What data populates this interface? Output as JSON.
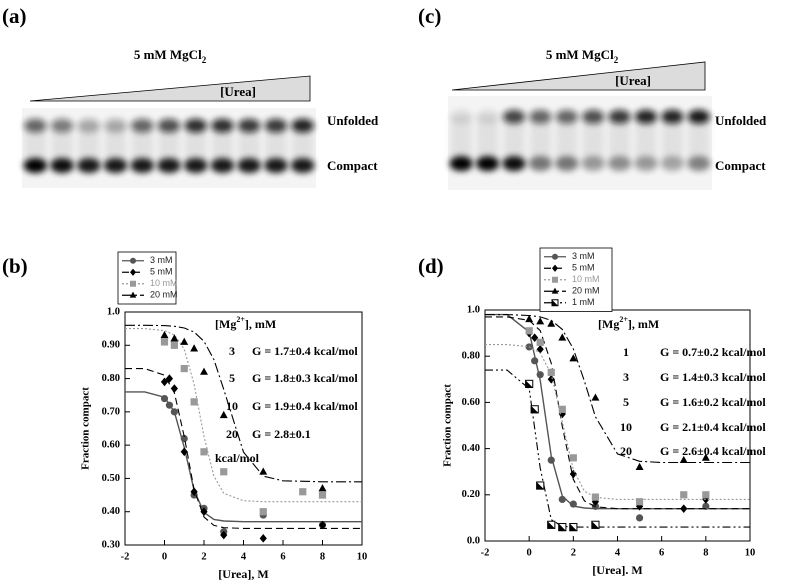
{
  "panels": [
    {
      "label": "(a)",
      "title": {
        "text": "5 mM MgCl",
        "sub": "2"
      },
      "wedge_label": "[Urea]",
      "bands": [
        "Unfolded",
        "Compact"
      ]
    },
    {
      "label": "(c)",
      "title": {
        "text": "5 mM MgCl",
        "sub": "2"
      },
      "wedge_label": "[Urea]",
      "bands": [
        "Unfolded",
        "Compact"
      ]
    }
  ],
  "chart_data": [
    {
      "type": "line",
      "label": "(b)",
      "xlabel": "[Urea], M",
      "ylabel": "Fraction compact",
      "xlim": [
        -2,
        10
      ],
      "ylim": [
        0.3,
        1.0
      ],
      "xticks": [
        -2,
        0,
        2,
        4,
        6,
        8,
        10
      ],
      "yticks": [
        {
          "value": 0.3,
          "label": "0.30"
        },
        {
          "value": 0.4,
          "label": "0.40"
        },
        {
          "value": 0.5,
          "label": "0.50"
        },
        {
          "value": 0.6,
          "label": "0.60"
        },
        {
          "value": 0.7,
          "label": "0.70"
        },
        {
          "value": 0.8,
          "label": "0.80"
        },
        {
          "value": 0.9,
          "label": "0.90"
        },
        {
          "value": 1.0,
          "label": "1.0"
        }
      ],
      "fit_x": [
        -2,
        -1,
        0,
        0.5,
        1,
        1.5,
        2,
        2.5,
        3,
        4,
        5,
        6,
        8,
        10
      ],
      "series": [
        {
          "name": "3 mM",
          "color": "#555555",
          "marker": "circle",
          "dash": "solid",
          "x": [
            0,
            0.25,
            0.5,
            1,
            1.5,
            2,
            3,
            5,
            8
          ],
          "values": [
            0.74,
            0.72,
            0.7,
            0.62,
            0.45,
            0.41,
            0.34,
            0.39,
            0.36
          ],
          "fit": [
            0.76,
            0.76,
            0.744,
            0.7,
            0.593,
            0.464,
            0.398,
            0.377,
            0.372,
            0.37,
            0.37,
            0.37,
            0.37,
            0.37
          ]
        },
        {
          "name": "5 mM",
          "color": "#000000",
          "marker": "diamond",
          "dash": "dashed",
          "x": [
            0,
            0.25,
            0.5,
            1,
            1.5,
            2,
            3,
            5,
            8
          ],
          "values": [
            0.79,
            0.8,
            0.77,
            0.58,
            0.46,
            0.4,
            0.33,
            0.32,
            0.36
          ],
          "fit": [
            0.83,
            0.83,
            0.81,
            0.757,
            0.625,
            0.466,
            0.384,
            0.359,
            0.352,
            0.35,
            0.35,
            0.35,
            0.35,
            0.35
          ]
        },
        {
          "name": "10 mM",
          "color": "#999999",
          "marker": "square",
          "dash": "dotted",
          "x": [
            0,
            0.5,
            1,
            1.5,
            2,
            3,
            5,
            7,
            8
          ],
          "values": [
            0.91,
            0.9,
            0.83,
            0.73,
            0.58,
            0.52,
            0.4,
            0.46,
            0.45
          ],
          "fit": [
            0.95,
            0.95,
            0.944,
            0.931,
            0.888,
            0.783,
            0.626,
            0.507,
            0.455,
            0.433,
            0.43,
            0.43,
            0.43,
            0.43
          ]
        },
        {
          "name": "20 mM",
          "color": "#000000",
          "marker": "triangle",
          "dash": "dashdot",
          "x": [
            0,
            0.5,
            1,
            1.5,
            2,
            3,
            5,
            8
          ],
          "values": [
            0.93,
            0.92,
            0.91,
            0.89,
            0.82,
            0.69,
            0.52,
            0.47
          ],
          "fit": [
            0.96,
            0.96,
            0.959,
            0.957,
            0.952,
            0.94,
            0.912,
            0.857,
            0.767,
            0.579,
            0.507,
            0.493,
            0.49,
            0.49
          ]
        }
      ],
      "annotation": {
        "header": {
          "text": "[Mg",
          "sup": "2+",
          "rest": "], mM"
        },
        "rows": [
          {
            "mg": "3",
            "g": [
              "G = 1.7±0.4 kcal/mol"
            ]
          },
          {
            "mg": "5",
            "g": [
              "G = 1.8±0.3 kcal/mol"
            ]
          },
          {
            "mg": "10",
            "g": [
              "G = 1.9±0.4 kcal/mol"
            ]
          },
          {
            "mg": "20",
            "g": [
              "G = 2.8±0.1",
              "kcal/mol"
            ]
          }
        ]
      }
    },
    {
      "type": "line",
      "label": "(d)",
      "xlabel": "[Urea]. M",
      "ylabel": "Fraction compact",
      "xlim": [
        -2,
        10
      ],
      "ylim": [
        0,
        1.0
      ],
      "xticks": [
        -2,
        0,
        2,
        4,
        6,
        8,
        10
      ],
      "yticks": [
        {
          "value": 0,
          "label": "0.0"
        },
        {
          "value": 0.2,
          "label": "0.20"
        },
        {
          "value": 0.4,
          "label": "0.40"
        },
        {
          "value": 0.6,
          "label": "0.60"
        },
        {
          "value": 0.8,
          "label": "0.80"
        },
        {
          "value": 1.0,
          "label": "1.0"
        }
      ],
      "fit_x": [
        -2,
        -1,
        0,
        0.5,
        1,
        1.5,
        2,
        2.5,
        3,
        4,
        5,
        6,
        8,
        10
      ],
      "series": [
        {
          "name": "3 mM",
          "color": "#555555",
          "marker": "circle",
          "dash": "solid",
          "x": [
            0,
            0.25,
            0.5,
            1,
            1.5,
            2,
            3,
            5,
            8
          ],
          "values": [
            0.84,
            0.78,
            0.72,
            0.35,
            0.18,
            0.16,
            0.15,
            0.1,
            0.15
          ],
          "fit": [
            0.98,
            0.98,
            0.905,
            0.696,
            0.366,
            0.195,
            0.151,
            0.143,
            0.14,
            0.14,
            0.14,
            0.14,
            0.14,
            0.14
          ]
        },
        {
          "name": "5 mM",
          "color": "#000000",
          "marker": "diamond",
          "dash": "dashed",
          "x": [
            0,
            0.25,
            0.5,
            1,
            1.5,
            2,
            3,
            5,
            7,
            8
          ],
          "values": [
            0.9,
            0.88,
            0.83,
            0.7,
            0.55,
            0.29,
            0.17,
            0.15,
            0.14,
            0.18
          ],
          "fit": [
            0.97,
            0.97,
            0.955,
            0.911,
            0.769,
            0.496,
            0.267,
            0.174,
            0.148,
            0.14,
            0.14,
            0.14,
            0.14,
            0.14
          ]
        },
        {
          "name": "10 mM",
          "color": "#999999",
          "marker": "square",
          "dash": "dotted",
          "x": [
            0,
            0.5,
            1,
            1.5,
            2,
            3,
            5,
            7,
            8
          ],
          "values": [
            0.91,
            0.86,
            0.73,
            0.57,
            0.36,
            0.19,
            0.17,
            0.2,
            0.2
          ],
          "fit": [
            0.85,
            0.85,
            0.841,
            0.814,
            0.721,
            0.515,
            0.309,
            0.216,
            0.189,
            0.18,
            0.18,
            0.18,
            0.18,
            0.18
          ]
        },
        {
          "name": "20 mM",
          "color": "#000000",
          "marker": "triangle",
          "dash": "dashdot",
          "x": [
            0,
            0.5,
            1,
            1.5,
            2,
            3,
            5,
            7,
            8
          ],
          "values": [
            0.96,
            0.95,
            0.94,
            0.88,
            0.79,
            0.62,
            0.32,
            0.35,
            0.36
          ],
          "fit": [
            0.98,
            0.98,
            0.976,
            0.97,
            0.955,
            0.916,
            0.832,
            0.692,
            0.538,
            0.377,
            0.345,
            0.34,
            0.34,
            0.34
          ]
        },
        {
          "name": "1 mM",
          "color": "#000000",
          "marker": "halfsquare",
          "dash": "dashdotdot",
          "x": [
            0,
            0.25,
            0.5,
            1,
            1.5,
            2,
            3
          ],
          "values": [
            0.68,
            0.57,
            0.24,
            0.07,
            0.06,
            0.06,
            0.07
          ],
          "fit": [
            0.74,
            0.74,
            0.659,
            0.316,
            0.092,
            0.063,
            0.06,
            0.06,
            0.06,
            0.06,
            0.06,
            0.06,
            0.06,
            0.06
          ]
        }
      ],
      "annotation": {
        "header": {
          "text": "[Mg",
          "sup": "2+",
          "rest": "], mM"
        },
        "rows": [
          {
            "mg": "1",
            "g": [
              "G = 0.7±0.2 kcal/mol"
            ]
          },
          {
            "mg": "3",
            "g": [
              "G = 1.4±0.3 kcal/mol"
            ]
          },
          {
            "mg": "5",
            "g": [
              "G = 1.6±0.2 kcal/mol"
            ]
          },
          {
            "mg": "10",
            "g": [
              "G = 2.1±0.4 kcal/mol"
            ]
          },
          {
            "mg": "20",
            "g": [
              "G = 2.6±0.4 kcal/mol"
            ]
          }
        ]
      }
    }
  ]
}
